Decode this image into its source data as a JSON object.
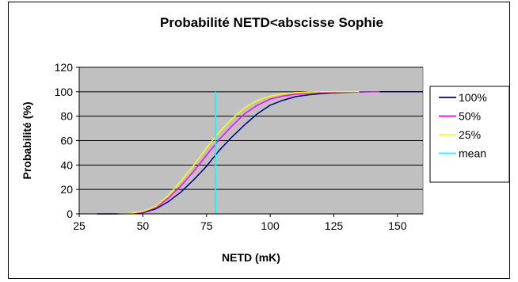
{
  "chart_data": {
    "type": "line",
    "title": "Probabilité NETD<abscisse Sophie",
    "xlabel": "NETD (mK)",
    "ylabel": "Probabilité (%)",
    "xlim": [
      25,
      160
    ],
    "ylim": [
      0,
      120
    ],
    "xticks": [
      25,
      50,
      75,
      100,
      125,
      150
    ],
    "yticks": [
      0,
      20,
      40,
      60,
      80,
      100,
      120
    ],
    "xtick_labels": [
      "25",
      "50",
      "75",
      "100",
      "125",
      "150"
    ],
    "ytick_labels": [
      "0",
      "20",
      "40",
      "60",
      "80",
      "100",
      "120"
    ],
    "grid": "horizontal",
    "plot_background": "#C0C0C0",
    "legend_position": "right",
    "series": [
      {
        "name": "100%",
        "color": "#000080",
        "x": [
          32,
          40,
          45,
          50,
          55,
          60,
          65,
          70,
          75,
          80,
          85,
          90,
          95,
          100,
          105,
          110,
          115,
          120,
          125,
          130,
          135,
          140,
          150,
          160
        ],
        "y": [
          0,
          0,
          0.3,
          1,
          4,
          10,
          18,
          28,
          39,
          52,
          63,
          73,
          82,
          89,
          93,
          96,
          97.5,
          98.5,
          99.2,
          99.6,
          99.8,
          100,
          100,
          100
        ]
      },
      {
        "name": "50%",
        "color": "#FF00FF",
        "x": [
          42,
          45,
          50,
          55,
          60,
          65,
          70,
          75,
          80,
          85,
          90,
          95,
          100,
          105,
          110,
          115,
          120,
          125,
          130,
          135,
          140,
          143
        ],
        "y": [
          0,
          0.4,
          1.5,
          5,
          13,
          23,
          35,
          48,
          61,
          72,
          82,
          89,
          94,
          96.5,
          98,
          99,
          99.5,
          99.8,
          100,
          100,
          100,
          100
        ]
      },
      {
        "name": "25%",
        "color": "#FFFF00",
        "x": [
          40,
          45,
          50,
          55,
          60,
          65,
          70,
          75,
          80,
          85,
          90,
          95,
          100,
          105,
          110,
          115,
          120,
          125,
          130,
          135
        ],
        "y": [
          0,
          0.5,
          2,
          6,
          15,
          27,
          40,
          54,
          67,
          78,
          87,
          93,
          96.5,
          98.5,
          99.3,
          99.7,
          100,
          100,
          100,
          100
        ]
      },
      {
        "name": "mean",
        "color": "#00FFFF",
        "x": [
          78.5,
          78.5
        ],
        "y": [
          0,
          100
        ]
      }
    ]
  }
}
